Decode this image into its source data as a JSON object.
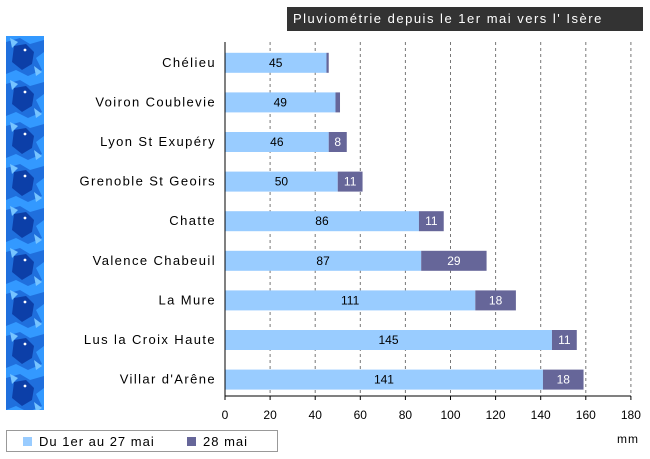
{
  "chart_data": {
    "type": "bar",
    "stacked": true,
    "orientation": "horizontal",
    "title": "Pluviométrie depuis le 1er mai vers l' Isère",
    "categories": [
      "Chélieu",
      "Voiron Coublevie",
      "Lyon St Exupéry",
      "Grenoble St Geoirs",
      "Chatte",
      "Valence Chabeuil",
      "La Mure",
      "Lus la Croix Haute",
      "Villar d'Arêne"
    ],
    "series": [
      {
        "name": "Du 1er au 27 mai",
        "values": [
          45,
          49,
          46,
          50,
          86,
          87,
          111,
          145,
          141
        ],
        "labels": [
          "45",
          "49",
          "46",
          "50",
          "86",
          "87",
          "111",
          "145",
          "141"
        ],
        "color": "#99ccff"
      },
      {
        "name": "28 mai",
        "values": [
          1,
          2,
          8,
          11,
          11,
          29,
          18,
          11,
          18
        ],
        "labels": [
          "",
          "",
          "8",
          "11",
          "11",
          "29",
          "18",
          "11",
          "18"
        ],
        "color": "#666699"
      }
    ],
    "x_ticks": [
      "0",
      "20",
      "40",
      "60",
      "80",
      "100",
      "120",
      "140",
      "160",
      "180"
    ],
    "xlim": [
      0,
      180
    ],
    "unit": "mm",
    "grid": "vertical dashed",
    "legend": "bottom-left"
  }
}
